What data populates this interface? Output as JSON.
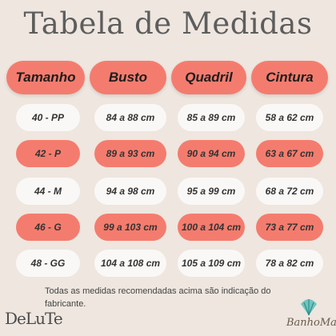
{
  "title": "Tabela de Medidas",
  "headers": [
    "Tamanho",
    "Busto",
    "Quadril",
    "Cintura"
  ],
  "rows": [
    [
      "40 - PP",
      "84 a 88 cm",
      "85 a 89 cm",
      "58 a 62 cm"
    ],
    [
      "42 - P",
      "89 a 93 cm",
      "90 a 94 cm",
      "63 a 67 cm"
    ],
    [
      "44 - M",
      "94 a 98 cm",
      "95 a 99 cm",
      "68 a 72 cm"
    ],
    [
      "46 - G",
      "99 a 103 cm",
      "100 a 104 cm",
      "73 a 77 cm"
    ],
    [
      "48 - GG",
      "104 a 108 cm",
      "105 a 109 cm",
      "78 a 82 cm"
    ]
  ],
  "row_styles": [
    "light",
    "coral",
    "light",
    "coral",
    "light"
  ],
  "note": "Todas as medidas recomendadas acima são indicação do fabricante.",
  "brands": {
    "left": "DeLuTe",
    "right": "BanhoMar"
  },
  "colors": {
    "background": "#eee6df",
    "coral": "#f47c6e",
    "light_pill": "#faf8f6",
    "shell_icon": "#5bbdb8"
  },
  "icons": {
    "brand_right": "shell-icon"
  }
}
